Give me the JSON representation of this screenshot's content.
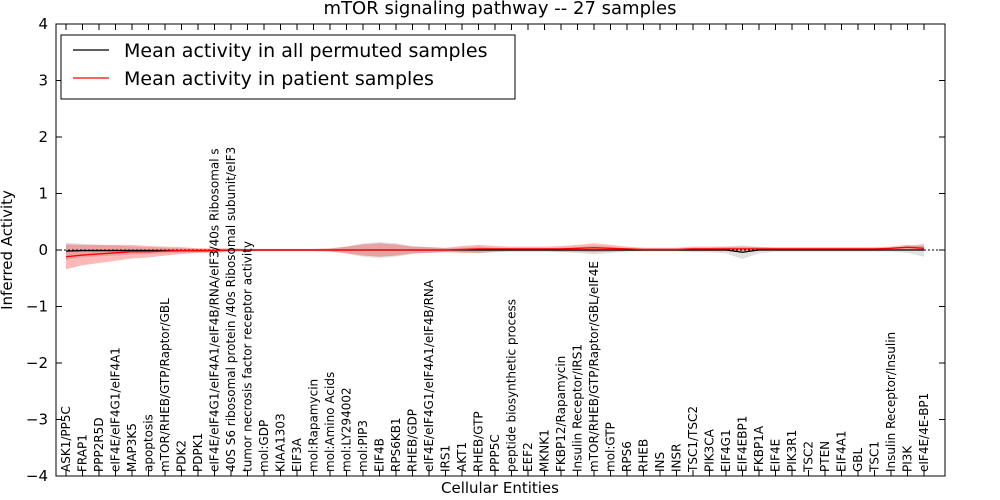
{
  "chart_data": {
    "type": "line",
    "title": "mTOR signaling pathway -- 27 samples",
    "xlabel": "Cellular Entities",
    "ylabel": "Inferred Activity",
    "ylim": [
      -4,
      4
    ],
    "yticks": [
      -4,
      -3,
      -2,
      -1,
      0,
      1,
      2,
      3,
      4
    ],
    "ytick_labels": [
      "−4",
      "−3",
      "−2",
      "−1",
      "0",
      "1",
      "2",
      "3",
      "4"
    ],
    "legend_position": "top-left",
    "categories": [
      "ASK1/PP5C",
      "FRAP1",
      "PPP2R5D",
      "eIF4E/eIF4G1/eIF4A1",
      "MAP3K5",
      "apoptosis",
      "mTOR/RHEB/GTP/Raptor/GBL",
      "PDK2",
      "PDPK1",
      "eIF4E/eIF4G1/eIF4A1/eIF4B/RNA/eIF3/40s Ribosomal s",
      "40S S6 ribosomal protein /40s Ribosomal subunit/eIF3",
      "tumor necrosis factor receptor activity",
      "mol:GDP",
      "KIAA1303",
      "EIF3A",
      "mol:Rapamycin",
      "mol:Amino Acids",
      "mol:LY294002",
      "mol:PIP3",
      "EIF4B",
      "RPS6KB1",
      "RHEB/GDP",
      "eIF4E/eIF4G1/eIF4A1/eIF4B/RNA",
      "IRS1",
      "AKT1",
      "RHEB/GTP",
      "PPP5C",
      "peptide biosynthetic process",
      "EEF2",
      "MKNK1",
      "FKBP12/Rapamycin",
      "Insulin Receptor/IRS1",
      "mTOR/RHEB/GTP/Raptor/GBL/eIF4E",
      "mol:GTP",
      "RPS6",
      "RHEB",
      "INS",
      "INSR",
      "TSC1/TSC2",
      "PIK3CA",
      "EIF4G1",
      "EIF4EBP1",
      "FKBP1A",
      "EIF4E",
      "PIK3R1",
      "TSC2",
      "PTEN",
      "EIF4A1",
      "GBL",
      "TSC1",
      "Insulin Receptor/Insulin",
      "PI3K",
      "eIF4E/4E-BP1"
    ],
    "series": [
      {
        "name": "Mean activity in all permuted samples",
        "color": "#000000",
        "values": [
          -0.02,
          -0.01,
          -0.01,
          -0.01,
          -0.01,
          -0.01,
          -0.01,
          -0.01,
          -0.01,
          -0.01,
          0,
          0,
          0,
          0,
          0,
          0,
          0,
          0,
          0,
          0,
          0,
          0,
          0,
          0,
          0,
          0,
          0,
          0,
          0,
          0,
          0,
          0,
          0,
          0,
          0,
          0,
          0,
          0,
          0,
          0,
          0,
          -0.04,
          0,
          0,
          0,
          0,
          0,
          0,
          0,
          0,
          0,
          0,
          0
        ],
        "band": [
          0.15,
          0.12,
          0.1,
          0.09,
          0.07,
          0.06,
          0.05,
          0.04,
          0.03,
          0.02,
          0.02,
          0.02,
          0.02,
          0.02,
          0.02,
          0.02,
          0.02,
          0.06,
          0.12,
          0.14,
          0.12,
          0.07,
          0.05,
          0.03,
          0.04,
          0.06,
          0.04,
          0.03,
          0.03,
          0.03,
          0.04,
          0.05,
          0.08,
          0.05,
          0.03,
          0.02,
          0.02,
          0.02,
          0.04,
          0.04,
          0.06,
          0.12,
          0.06,
          0.03,
          0.03,
          0.03,
          0.03,
          0.03,
          0.03,
          0.03,
          0.03,
          0.05,
          0.12
        ]
      },
      {
        "name": "Mean activity in patient samples",
        "color": "#ff0000",
        "values": [
          -0.12,
          -0.09,
          -0.07,
          -0.05,
          -0.03,
          -0.03,
          -0.02,
          -0.01,
          -0.01,
          -0.01,
          0,
          0,
          0,
          0,
          0,
          0,
          0,
          0,
          0,
          0,
          0,
          0,
          0,
          0,
          0.01,
          0.02,
          0.02,
          0.02,
          0.02,
          0.02,
          0.02,
          0.03,
          0.04,
          0.03,
          0.02,
          0.01,
          0.01,
          0.01,
          0.02,
          0.02,
          0.02,
          0.02,
          0.02,
          0.02,
          0.02,
          0.02,
          0.02,
          0.02,
          0.02,
          0.02,
          0.03,
          0.05,
          0.03
        ],
        "band": [
          0.22,
          0.18,
          0.16,
          0.14,
          0.12,
          0.1,
          0.08,
          0.06,
          0.04,
          0.04,
          0.03,
          0.02,
          0.02,
          0.02,
          0.02,
          0.02,
          0.03,
          0.06,
          0.1,
          0.12,
          0.1,
          0.06,
          0.05,
          0.04,
          0.06,
          0.07,
          0.05,
          0.04,
          0.04,
          0.04,
          0.05,
          0.06,
          0.08,
          0.06,
          0.04,
          0.03,
          0.03,
          0.03,
          0.04,
          0.04,
          0.04,
          0.04,
          0.03,
          0.03,
          0.03,
          0.03,
          0.03,
          0.03,
          0.03,
          0.03,
          0.03,
          0.04,
          0.05
        ]
      }
    ]
  }
}
